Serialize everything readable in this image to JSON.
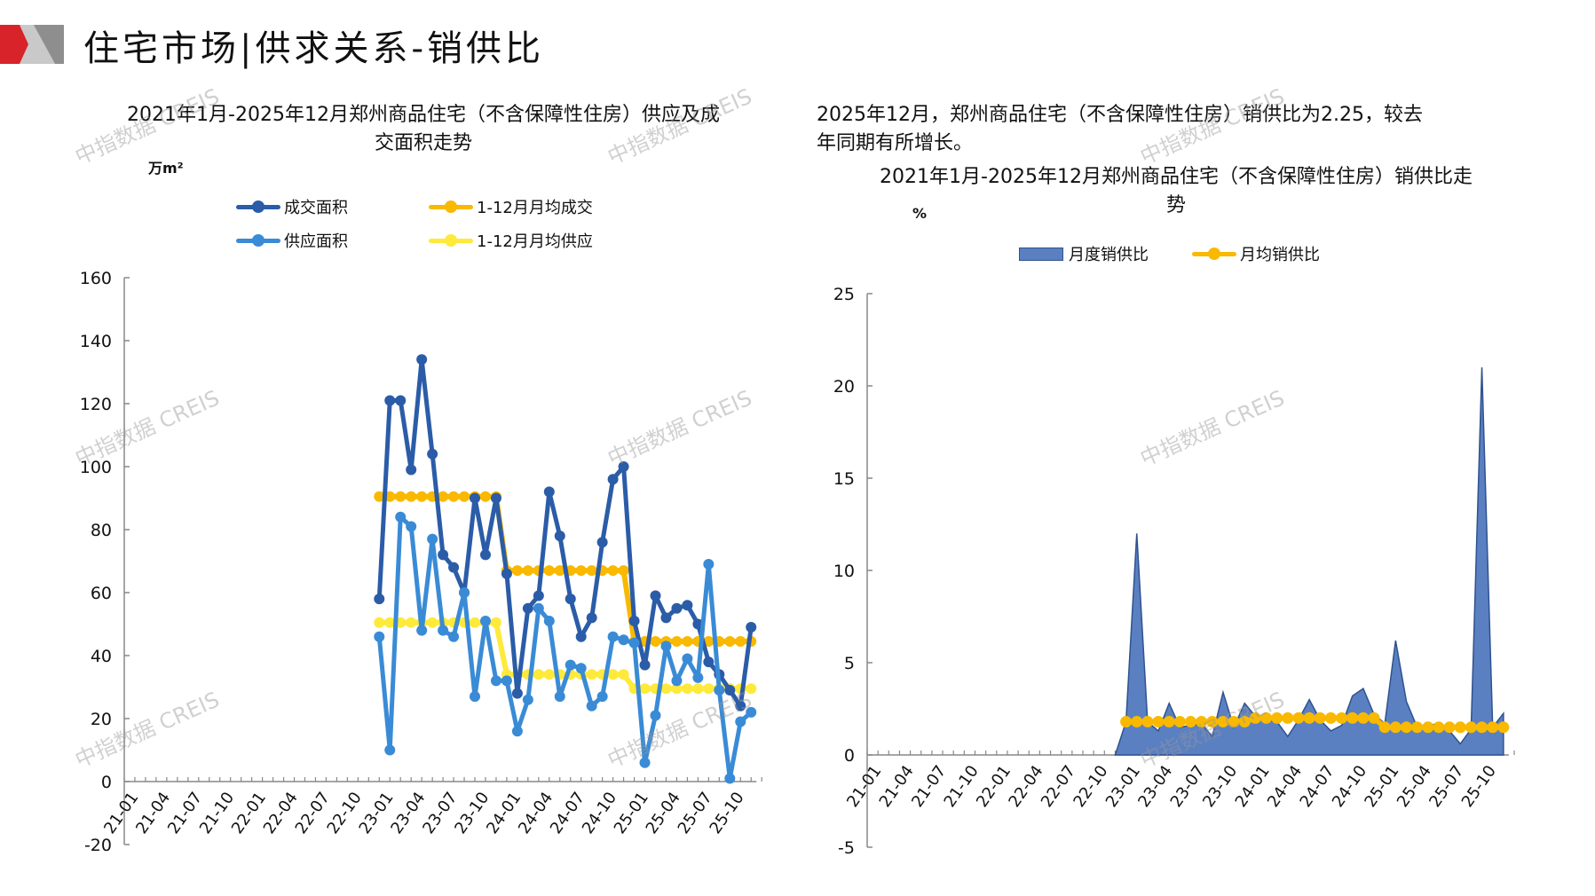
{
  "page_title": "住宅市场|供求关系-销供比",
  "watermark": "中指数据 CREIS",
  "colors": {
    "deal": "#2b5ca8",
    "supply": "#3a8bd6",
    "deal_avg": "#f9b900",
    "supply_avg": "#ffe93b",
    "ratio_fill": "#5b80c2",
    "ratio_stroke": "#2f528f",
    "ratio_avg": "#f9b900",
    "axis": "#888888",
    "brand_red": "#d9232a"
  },
  "left": {
    "title_line1": "2021年1月-2025年12月郑州商品住宅（不含保障性住房）供应及成",
    "title_line2": "交面积走势",
    "unit": "万m²"
  },
  "right": {
    "summary_line1": "2025年12月，郑州商品住宅（不含保障性住房）销供比为2.25，较去",
    "summary_line2": "年同期有所增长。",
    "title_line1": "2021年1月-2025年12月郑州商品住宅（不含保障性住房）销供比走",
    "title_line2": "势",
    "unit": "%"
  },
  "chart_data": [
    {
      "type": "line",
      "title": "2021年1月-2025年12月郑州商品住宅（不含保障性住房）供应及成交面积走势",
      "ylabel": "万m²",
      "ylim": [
        -20,
        160
      ],
      "yticks": [
        "160",
        "140",
        "120",
        "100",
        "80",
        "60",
        "40",
        "20",
        "0",
        "-20"
      ],
      "xtick_labels": [
        "21-01",
        "21-04",
        "21-07",
        "21-10",
        "22-01",
        "22-04",
        "22-07",
        "22-10",
        "23-01",
        "23-04",
        "23-07",
        "23-10",
        "24-01",
        "24-04",
        "24-07",
        "24-10",
        "25-01",
        "25-04",
        "25-07",
        "25-10"
      ],
      "x_range": [
        "21-01",
        "25-12"
      ],
      "data_start": "23-01",
      "legend": "top",
      "series": [
        {
          "name": "成交面积",
          "values": [
            58,
            121,
            121,
            99,
            134,
            104,
            72,
            68,
            60,
            90,
            72,
            90,
            66,
            28,
            55,
            59,
            92,
            78,
            58,
            46,
            52,
            76,
            96,
            100,
            51,
            37,
            59,
            52,
            55,
            56,
            50,
            38,
            34,
            29,
            24,
            49
          ]
        },
        {
          "name": "供应面积",
          "values": [
            46,
            10,
            84,
            81,
            48,
            77,
            48,
            46,
            60,
            27,
            51,
            32,
            32,
            16,
            26,
            55,
            51,
            27,
            37,
            36,
            24,
            27,
            46,
            45,
            44,
            6,
            21,
            43,
            32,
            39,
            33,
            69,
            29,
            1,
            19,
            22
          ]
        },
        {
          "name": "1-12月月均成交",
          "values": [
            90.5,
            90.5,
            90.5,
            90.5,
            90.5,
            90.5,
            90.5,
            90.5,
            90.5,
            90.5,
            90.5,
            90.5,
            67,
            67,
            67,
            67,
            67,
            67,
            67,
            67,
            67,
            67,
            67,
            67,
            44.5,
            44.5,
            44.5,
            44.5,
            44.5,
            44.5,
            44.5,
            44.5,
            44.5,
            44.5,
            44.5,
            44.5
          ]
        },
        {
          "name": "1-12月月均供应",
          "values": [
            50.5,
            50.5,
            50.5,
            50.5,
            50.5,
            50.5,
            50.5,
            50.5,
            50.5,
            50.5,
            50.5,
            50.5,
            34,
            34,
            34,
            34,
            34,
            34,
            34,
            34,
            34,
            34,
            34,
            34,
            29.5,
            29.5,
            29.5,
            29.5,
            29.5,
            29.5,
            29.5,
            29.5,
            29.5,
            29.5,
            29.5,
            29.5
          ]
        }
      ]
    },
    {
      "type": "area",
      "title": "2021年1月-2025年12月郑州商品住宅（不含保障性住房）销供比走势",
      "ylabel": "%",
      "ylim": [
        -5,
        25
      ],
      "yticks": [
        "25",
        "20",
        "15",
        "10",
        "5",
        "0",
        "-5"
      ],
      "xtick_labels": [
        "21-01",
        "21-04",
        "21-07",
        "21-10",
        "22-01",
        "22-04",
        "22-07",
        "22-10",
        "23-01",
        "23-04",
        "23-07",
        "23-10",
        "24-01",
        "24-04",
        "24-07",
        "24-10",
        "25-01",
        "25-04",
        "25-07",
        "25-10"
      ],
      "x_range": [
        "21-01",
        "25-12"
      ],
      "data_start": "23-01",
      "legend": "top",
      "series": [
        {
          "name": "月度销供比",
          "values": [
            1.8,
            12.0,
            1.8,
            1.3,
            2.8,
            1.5,
            1.6,
            1.7,
            1.0,
            3.4,
            1.5,
            2.8,
            2.1,
            1.9,
            1.8,
            1.0,
            1.9,
            3.0,
            1.9,
            1.3,
            1.6,
            3.2,
            3.6,
            2.2,
            1.7,
            6.2,
            2.9,
            1.5,
            1.6,
            1.7,
            1.3,
            0.6,
            1.4,
            21.0,
            1.5,
            2.25
          ]
        },
        {
          "name": "月均销供比",
          "values": [
            1.8,
            1.8,
            1.8,
            1.8,
            1.8,
            1.8,
            1.8,
            1.8,
            1.8,
            1.8,
            1.8,
            1.8,
            2.0,
            2.0,
            2.0,
            2.0,
            2.0,
            2.0,
            2.0,
            2.0,
            2.0,
            2.0,
            2.0,
            2.0,
            1.5,
            1.5,
            1.5,
            1.5,
            1.5,
            1.5,
            1.5,
            1.5,
            1.5,
            1.5,
            1.5,
            1.5
          ]
        }
      ]
    }
  ]
}
